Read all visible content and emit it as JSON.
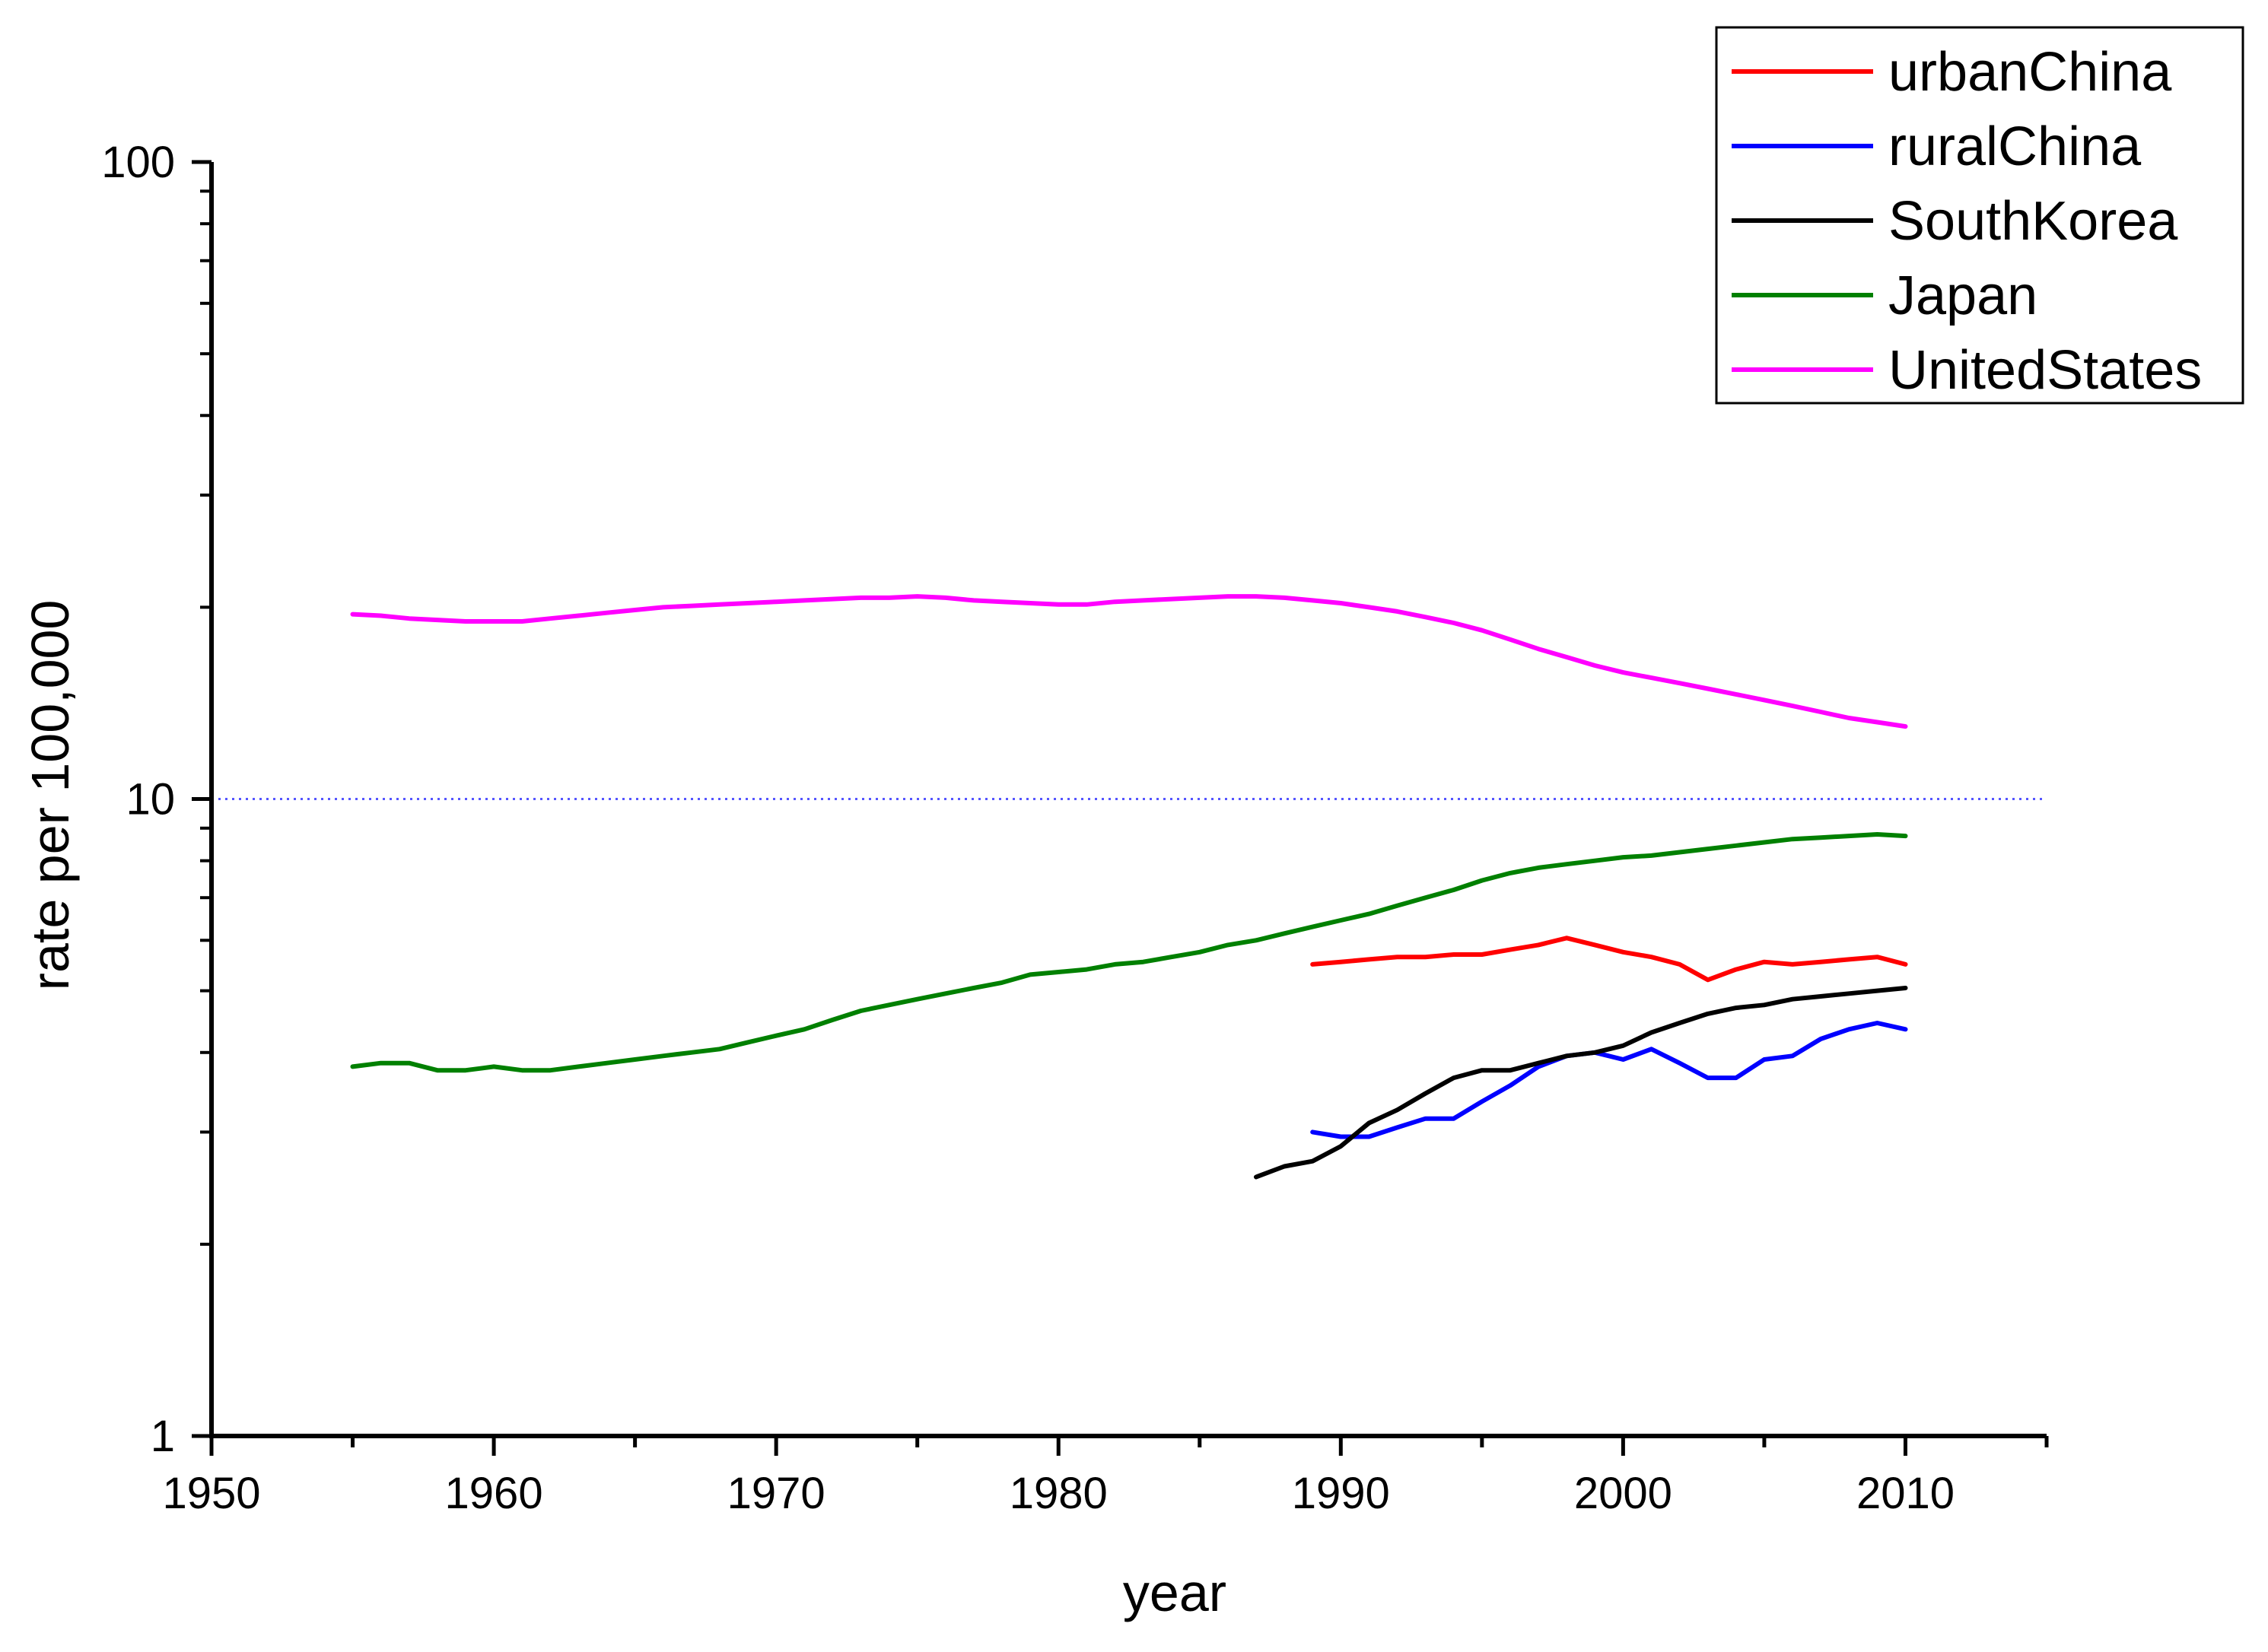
{
  "chart_data": {
    "type": "line",
    "xlabel": "year",
    "ylabel": "rate per 100,000",
    "x_axis": {
      "range": [
        1950,
        2015
      ],
      "ticks": [
        1950,
        1960,
        1970,
        1980,
        1990,
        2000,
        2010
      ]
    },
    "y_axis": {
      "scale": "log",
      "range": [
        1,
        100
      ],
      "ticks": [
        1,
        10,
        100
      ],
      "tick_labels": [
        "1",
        "10",
        "100"
      ]
    },
    "reference_line": {
      "y": 10,
      "style": "dotted",
      "color": "#5555ff"
    },
    "legend_position": "top-right",
    "series": [
      {
        "name": "urbanChina",
        "color": "#ff0000",
        "points": [
          [
            1989,
            5.5
          ],
          [
            1990,
            5.55
          ],
          [
            1991,
            5.6
          ],
          [
            1992,
            5.65
          ],
          [
            1993,
            5.65
          ],
          [
            1994,
            5.7
          ],
          [
            1995,
            5.7
          ],
          [
            1996,
            5.8
          ],
          [
            1997,
            5.9
          ],
          [
            1998,
            6.05
          ],
          [
            1999,
            5.9
          ],
          [
            2000,
            5.75
          ],
          [
            2001,
            5.65
          ],
          [
            2002,
            5.5
          ],
          [
            2003,
            5.2
          ],
          [
            2004,
            5.4
          ],
          [
            2005,
            5.55
          ],
          [
            2006,
            5.5
          ],
          [
            2007,
            5.55
          ],
          [
            2008,
            5.6
          ],
          [
            2009,
            5.65
          ],
          [
            2010,
            5.5
          ]
        ]
      },
      {
        "name": "ruralChina",
        "color": "#0000ff",
        "points": [
          [
            1989,
            3.0
          ],
          [
            1990,
            2.95
          ],
          [
            1991,
            2.95
          ],
          [
            1992,
            3.05
          ],
          [
            1993,
            3.15
          ],
          [
            1994,
            3.15
          ],
          [
            1995,
            3.35
          ],
          [
            1996,
            3.55
          ],
          [
            1997,
            3.8
          ],
          [
            1998,
            3.95
          ],
          [
            1999,
            4.0
          ],
          [
            2000,
            3.9
          ],
          [
            2001,
            4.05
          ],
          [
            2002,
            3.85
          ],
          [
            2003,
            3.65
          ],
          [
            2004,
            3.65
          ],
          [
            2005,
            3.9
          ],
          [
            2006,
            3.95
          ],
          [
            2007,
            4.2
          ],
          [
            2008,
            4.35
          ],
          [
            2009,
            4.45
          ],
          [
            2010,
            4.35
          ]
        ]
      },
      {
        "name": "SouthKorea",
        "color": "#000000",
        "points": [
          [
            1987,
            2.55
          ],
          [
            1988,
            2.65
          ],
          [
            1989,
            2.7
          ],
          [
            1990,
            2.85
          ],
          [
            1991,
            3.1
          ],
          [
            1992,
            3.25
          ],
          [
            1993,
            3.45
          ],
          [
            1994,
            3.65
          ],
          [
            1995,
            3.75
          ],
          [
            1996,
            3.75
          ],
          [
            1997,
            3.85
          ],
          [
            1998,
            3.95
          ],
          [
            1999,
            4.0
          ],
          [
            2000,
            4.1
          ],
          [
            2001,
            4.3
          ],
          [
            2002,
            4.45
          ],
          [
            2003,
            4.6
          ],
          [
            2004,
            4.7
          ],
          [
            2005,
            4.75
          ],
          [
            2006,
            4.85
          ],
          [
            2007,
            4.9
          ],
          [
            2008,
            4.95
          ],
          [
            2009,
            5.0
          ],
          [
            2010,
            5.05
          ]
        ]
      },
      {
        "name": "Japan",
        "color": "#008000",
        "points": [
          [
            1955,
            3.8
          ],
          [
            1956,
            3.85
          ],
          [
            1957,
            3.85
          ],
          [
            1958,
            3.75
          ],
          [
            1959,
            3.75
          ],
          [
            1960,
            3.8
          ],
          [
            1961,
            3.75
          ],
          [
            1962,
            3.75
          ],
          [
            1963,
            3.8
          ],
          [
            1964,
            3.85
          ],
          [
            1965,
            3.9
          ],
          [
            1966,
            3.95
          ],
          [
            1967,
            4.0
          ],
          [
            1968,
            4.05
          ],
          [
            1969,
            4.15
          ],
          [
            1970,
            4.25
          ],
          [
            1971,
            4.35
          ],
          [
            1972,
            4.5
          ],
          [
            1973,
            4.65
          ],
          [
            1974,
            4.75
          ],
          [
            1975,
            4.85
          ],
          [
            1976,
            4.95
          ],
          [
            1977,
            5.05
          ],
          [
            1978,
            5.15
          ],
          [
            1979,
            5.3
          ],
          [
            1980,
            5.35
          ],
          [
            1981,
            5.4
          ],
          [
            1982,
            5.5
          ],
          [
            1983,
            5.55
          ],
          [
            1984,
            5.65
          ],
          [
            1985,
            5.75
          ],
          [
            1986,
            5.9
          ],
          [
            1987,
            6.0
          ],
          [
            1988,
            6.15
          ],
          [
            1989,
            6.3
          ],
          [
            1990,
            6.45
          ],
          [
            1991,
            6.6
          ],
          [
            1992,
            6.8
          ],
          [
            1993,
            7.0
          ],
          [
            1994,
            7.2
          ],
          [
            1995,
            7.45
          ],
          [
            1996,
            7.65
          ],
          [
            1997,
            7.8
          ],
          [
            1998,
            7.9
          ],
          [
            1999,
            8.0
          ],
          [
            2000,
            8.1
          ],
          [
            2001,
            8.15
          ],
          [
            2002,
            8.25
          ],
          [
            2003,
            8.35
          ],
          [
            2004,
            8.45
          ],
          [
            2005,
            8.55
          ],
          [
            2006,
            8.65
          ],
          [
            2007,
            8.7
          ],
          [
            2008,
            8.75
          ],
          [
            2009,
            8.8
          ],
          [
            2010,
            8.75
          ]
        ]
      },
      {
        "name": "UnitedStates",
        "color": "#ff00ff",
        "points": [
          [
            1955,
            19.5
          ],
          [
            1956,
            19.4
          ],
          [
            1957,
            19.2
          ],
          [
            1958,
            19.1
          ],
          [
            1959,
            19.0
          ],
          [
            1960,
            19.0
          ],
          [
            1961,
            19.0
          ],
          [
            1962,
            19.2
          ],
          [
            1963,
            19.4
          ],
          [
            1964,
            19.6
          ],
          [
            1965,
            19.8
          ],
          [
            1966,
            20.0
          ],
          [
            1967,
            20.1
          ],
          [
            1968,
            20.2
          ],
          [
            1969,
            20.3
          ],
          [
            1970,
            20.4
          ],
          [
            1971,
            20.5
          ],
          [
            1972,
            20.6
          ],
          [
            1973,
            20.7
          ],
          [
            1974,
            20.7
          ],
          [
            1975,
            20.8
          ],
          [
            1976,
            20.7
          ],
          [
            1977,
            20.5
          ],
          [
            1978,
            20.4
          ],
          [
            1979,
            20.3
          ],
          [
            1980,
            20.2
          ],
          [
            1981,
            20.2
          ],
          [
            1982,
            20.4
          ],
          [
            1983,
            20.5
          ],
          [
            1984,
            20.6
          ],
          [
            1985,
            20.7
          ],
          [
            1986,
            20.8
          ],
          [
            1987,
            20.8
          ],
          [
            1988,
            20.7
          ],
          [
            1989,
            20.5
          ],
          [
            1990,
            20.3
          ],
          [
            1991,
            20.0
          ],
          [
            1992,
            19.7
          ],
          [
            1993,
            19.3
          ],
          [
            1994,
            18.9
          ],
          [
            1995,
            18.4
          ],
          [
            1996,
            17.8
          ],
          [
            1997,
            17.2
          ],
          [
            1998,
            16.7
          ],
          [
            1999,
            16.2
          ],
          [
            2000,
            15.8
          ],
          [
            2001,
            15.5
          ],
          [
            2002,
            15.2
          ],
          [
            2003,
            14.9
          ],
          [
            2004,
            14.6
          ],
          [
            2005,
            14.3
          ],
          [
            2006,
            14.0
          ],
          [
            2007,
            13.7
          ],
          [
            2008,
            13.4
          ],
          [
            2009,
            13.2
          ],
          [
            2010,
            13.0
          ]
        ]
      }
    ]
  }
}
